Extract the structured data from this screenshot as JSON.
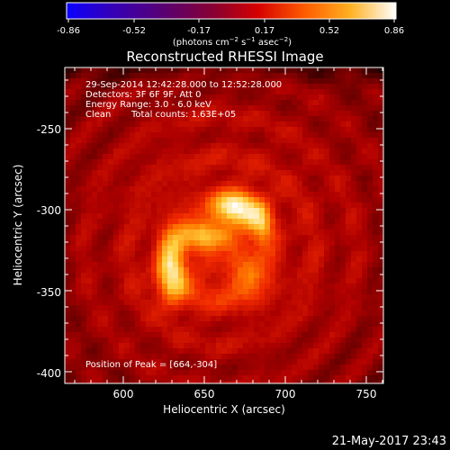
{
  "colorbar": {
    "ticks": [
      "-0.86",
      "-0.52",
      "-0.17",
      "0.17",
      "0.52",
      "0.86"
    ],
    "min": -0.86,
    "max": 0.86
  },
  "title": "Reconstructed RHESSI Image",
  "axes": {
    "xlabel": "Heliocentric X (arcsec)",
    "ylabel": "Heliocentric Y (arcsec)",
    "xticks": [
      "600",
      "650",
      "700",
      "750"
    ],
    "yticks": [
      "-250",
      "-300",
      "-350",
      "-400"
    ],
    "xrange": [
      567,
      760
    ],
    "yrange": [
      -405,
      -210
    ]
  },
  "annotation": {
    "time": "29-Sep-2014 12:42:28.000 to 12:52:28.000",
    "detectors": "Detectors: 3F 6F 9F, Att 0",
    "energy": "Energy Range: 3.0 - 6.0 keV",
    "clean": "Clean",
    "counts": "Total counts: 1.63E+05",
    "peak": "Position of Peak = [664,-304]"
  },
  "timestamp": "21-May-2017 23:43",
  "colors": {
    "cmap": [
      "#000000",
      "#5a0000",
      "#b00000",
      "#ff2a00",
      "#ff8c00",
      "#ffd23a",
      "#ffffff"
    ],
    "cbar_low": [
      "#0000ff",
      "#4b0082",
      "#7a0c7a"
    ]
  }
}
